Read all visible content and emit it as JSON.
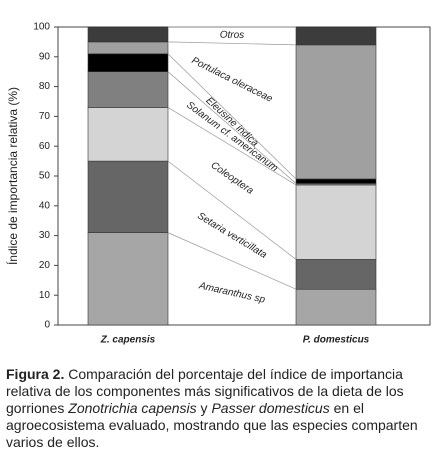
{
  "chart_data": {
    "type": "stacked_bar",
    "ylabel": "Índice de importancia relativa (%)",
    "categories": [
      "Z. capensis",
      "P. domesticus"
    ],
    "series": [
      {
        "name": "Amaranthus sp",
        "color": "#a6a6a6",
        "values": [
          31,
          12
        ]
      },
      {
        "name": "Setaria verticillata",
        "color": "#666666",
        "values": [
          24,
          10
        ]
      },
      {
        "name": "Coleoptera",
        "color": "#d4d4d4",
        "values": [
          18,
          25
        ]
      },
      {
        "name": "Solanum cf. americanum",
        "color": "#808080",
        "values": [
          12,
          0.5
        ]
      },
      {
        "name": "Eleusine indica",
        "color": "#000000",
        "values": [
          6,
          1.5
        ]
      },
      {
        "name": "Portulaca oleraceae",
        "color": "#a0a0a0",
        "values": [
          4,
          45
        ]
      },
      {
        "name": "Otros",
        "color": "#3c3c3c",
        "values": [
          5,
          6
        ]
      }
    ],
    "ylim": [
      0,
      100
    ],
    "yticks": [
      0,
      10,
      20,
      30,
      40,
      50,
      60,
      70,
      80,
      90,
      100
    ]
  },
  "caption": {
    "label": "Figura 2.",
    "parts": [
      {
        "text": " Comparación del porcentaje del índice de importancia relativa de los componentes más significativos de la dieta de los gorriones ",
        "italic": false
      },
      {
        "text": "Zonotrichia capensis",
        "italic": true
      },
      {
        "text": " y ",
        "italic": false
      },
      {
        "text": "Passer domesticus",
        "italic": true
      },
      {
        "text": " en el agroecosistema evaluado, mostrando que las especies comparten varios de ellos.",
        "italic": false
      }
    ]
  }
}
